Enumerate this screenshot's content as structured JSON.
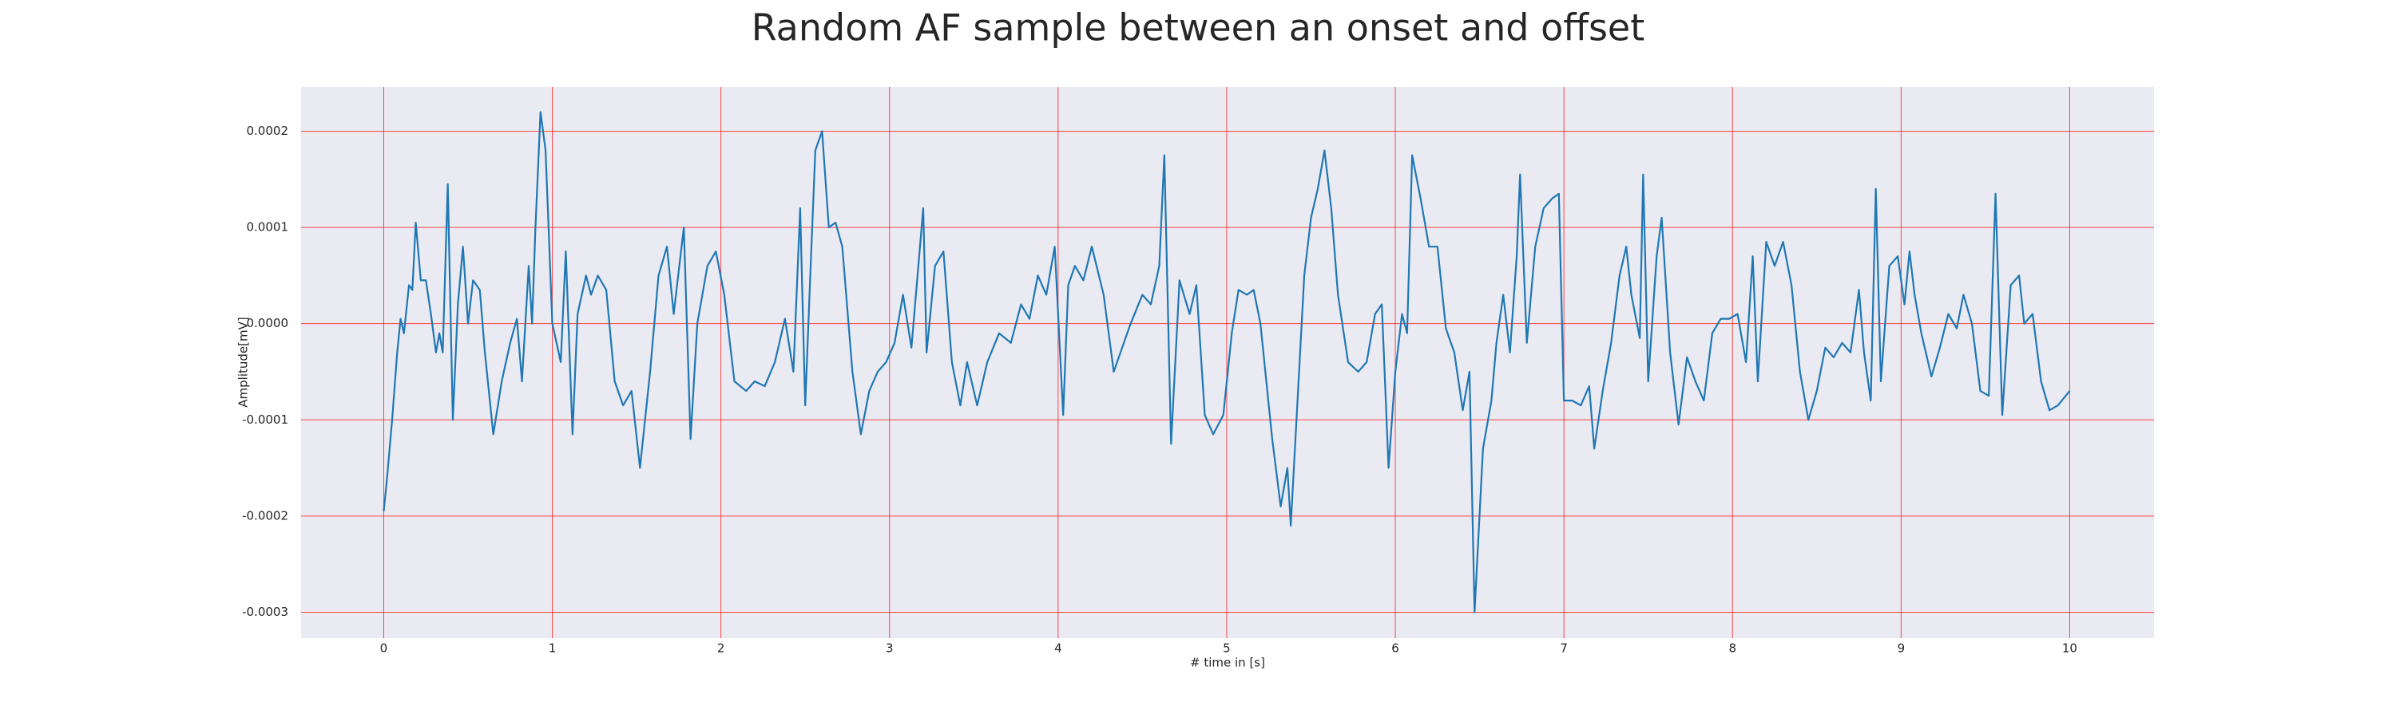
{
  "chart_data": {
    "type": "line",
    "title": "Random AF sample between an onset and offset",
    "x_label": "# time in [s]",
    "y_label": "Amplitude[mV]",
    "xlim": [
      -0.49,
      10.5
    ],
    "ylim": [
      -0.000327,
      0.000246
    ],
    "xticks": [
      0,
      1,
      2,
      3,
      4,
      5,
      6,
      7,
      8,
      9,
      10
    ],
    "yticks": [
      0.0002,
      0.0001,
      {
        "value": 0,
        "label": "0.0000"
      },
      -0.0001,
      -0.0002,
      -0.0003
    ],
    "grid": true,
    "grid_color": "#ff0000",
    "background": "#eaeaf2",
    "x": [
      0,
      0.02,
      0.05,
      0.08,
      0.1,
      0.12,
      0.15,
      0.17,
      0.19,
      0.22,
      0.25,
      0.28,
      0.31,
      0.33,
      0.35,
      0.38,
      0.41,
      0.44,
      0.47,
      0.5,
      0.53,
      0.57,
      0.6,
      0.65,
      0.7,
      0.75,
      0.79,
      0.82,
      0.86,
      0.88,
      0.9,
      0.93,
      0.96,
      1.0,
      1.05,
      1.08,
      1.12,
      1.15,
      1.2,
      1.23,
      1.27,
      1.32,
      1.37,
      1.42,
      1.47,
      1.52,
      1.58,
      1.63,
      1.68,
      1.72,
      1.78,
      1.82,
      1.86,
      1.92,
      1.97,
      2.02,
      2.08,
      2.15,
      2.2,
      2.26,
      2.32,
      2.38,
      2.43,
      2.47,
      2.5,
      2.53,
      2.56,
      2.6,
      2.64,
      2.68,
      2.72,
      2.78,
      2.83,
      2.88,
      2.93,
      2.98,
      3.03,
      3.08,
      3.13,
      3.2,
      3.22,
      3.27,
      3.32,
      3.37,
      3.42,
      3.46,
      3.52,
      3.58,
      3.65,
      3.72,
      3.78,
      3.83,
      3.88,
      3.93,
      3.98,
      4.03,
      4.06,
      4.1,
      4.15,
      4.2,
      4.27,
      4.33,
      4.38,
      4.43,
      4.5,
      4.55,
      4.6,
      4.63,
      4.67,
      4.72,
      4.78,
      4.82,
      4.87,
      4.92,
      4.98,
      5.03,
      5.07,
      5.12,
      5.16,
      5.2,
      5.27,
      5.32,
      5.36,
      5.38,
      5.42,
      5.46,
      5.5,
      5.54,
      5.58,
      5.62,
      5.66,
      5.72,
      5.78,
      5.83,
      5.88,
      5.92,
      5.96,
      6.0,
      6.04,
      6.07,
      6.1,
      6.15,
      6.2,
      6.25,
      6.3,
      6.35,
      6.4,
      6.44,
      6.47,
      6.52,
      6.57,
      6.6,
      6.64,
      6.68,
      6.72,
      6.74,
      6.78,
      6.83,
      6.88,
      6.93,
      6.97,
      7.0,
      7.05,
      7.1,
      7.15,
      7.18,
      7.23,
      7.28,
      7.33,
      7.37,
      7.4,
      7.45,
      7.47,
      7.5,
      7.55,
      7.58,
      7.63,
      7.68,
      7.73,
      7.78,
      7.83,
      7.88,
      7.93,
      7.98,
      8.03,
      8.08,
      8.12,
      8.15,
      8.2,
      8.25,
      8.3,
      8.35,
      8.4,
      8.45,
      8.5,
      8.55,
      8.6,
      8.65,
      8.7,
      8.75,
      8.78,
      8.82,
      8.85,
      8.88,
      8.93,
      8.98,
      9.02,
      9.05,
      9.08,
      9.12,
      9.18,
      9.23,
      9.28,
      9.33,
      9.37,
      9.42,
      9.47,
      9.52,
      9.56,
      9.6,
      9.65,
      9.7,
      9.73,
      9.78,
      9.83,
      9.88,
      9.93,
      10.0
    ],
    "series": [
      {
        "color": "#1f77b4",
        "values": [
          -0.000195,
          -0.00016,
          -0.0001,
          -3e-05,
          5e-06,
          -1e-05,
          4e-05,
          3.5e-05,
          0.000105,
          4.5e-05,
          4.5e-05,
          1e-05,
          -3e-05,
          -1e-05,
          -3e-05,
          0.000145,
          -0.0001,
          2e-05,
          8e-05,
          0.0,
          4.5e-05,
          3.5e-05,
          -3e-05,
          -0.000115,
          -6e-05,
          -2e-05,
          5e-06,
          -6e-05,
          6e-05,
          0.0,
          0.0001,
          0.00022,
          0.00018,
          0.0,
          -4e-05,
          7.5e-05,
          -0.000115,
          1e-05,
          5e-05,
          3e-05,
          5e-05,
          3.5e-05,
          -6e-05,
          -8.5e-05,
          -7e-05,
          -0.00015,
          -5e-05,
          5e-05,
          8e-05,
          1e-05,
          0.0001,
          -0.00012,
          0.0,
          6e-05,
          7.5e-05,
          3e-05,
          -6e-05,
          -7e-05,
          -6e-05,
          -6.5e-05,
          -4e-05,
          5e-06,
          -5e-05,
          0.00012,
          -8.5e-05,
          5e-05,
          0.00018,
          0.0002,
          0.0001,
          0.000105,
          8e-05,
          -5e-05,
          -0.000115,
          -7e-05,
          -5e-05,
          -4e-05,
          -2e-05,
          3e-05,
          -2.5e-05,
          0.00012,
          -3e-05,
          6e-05,
          7.5e-05,
          -4e-05,
          -8.5e-05,
          -4e-05,
          -8.5e-05,
          -4e-05,
          -1e-05,
          -2e-05,
          2e-05,
          5e-06,
          5e-05,
          3e-05,
          8e-05,
          -9.5e-05,
          4e-05,
          6e-05,
          4.5e-05,
          8e-05,
          3e-05,
          -5e-05,
          -2.5e-05,
          0.0,
          3e-05,
          2e-05,
          6e-05,
          0.000175,
          -0.000125,
          4.5e-05,
          1e-05,
          4e-05,
          -9.5e-05,
          -0.000115,
          -9.5e-05,
          -1e-05,
          3.5e-05,
          3e-05,
          3.5e-05,
          0.0,
          -0.00012,
          -0.00019,
          -0.00015,
          -0.00021,
          -8e-05,
          5e-05,
          0.00011,
          0.00014,
          0.00018,
          0.00012,
          3e-05,
          -4e-05,
          -5e-05,
          -4e-05,
          1e-05,
          2e-05,
          -0.00015,
          -5e-05,
          1e-05,
          -1e-05,
          0.000175,
          0.00013,
          8e-05,
          8e-05,
          -5e-06,
          -3e-05,
          -9e-05,
          -5e-05,
          -0.0003,
          -0.00013,
          -8e-05,
          -2e-05,
          3e-05,
          -3e-05,
          7e-05,
          0.000155,
          -2e-05,
          8e-05,
          0.00012,
          0.00013,
          0.000135,
          -8e-05,
          -8e-05,
          -8.5e-05,
          -6.5e-05,
          -0.00013,
          -7e-05,
          -2e-05,
          5e-05,
          8e-05,
          3e-05,
          -1.5e-05,
          0.000155,
          -6e-05,
          7e-05,
          0.00011,
          -3e-05,
          -0.000105,
          -3.5e-05,
          -6e-05,
          -8e-05,
          -1e-05,
          5e-06,
          5e-06,
          1e-05,
          -4e-05,
          7e-05,
          -6e-05,
          8.5e-05,
          6e-05,
          8.5e-05,
          4e-05,
          -5e-05,
          -0.0001,
          -7e-05,
          -2.5e-05,
          -3.5e-05,
          -2e-05,
          -3e-05,
          3.5e-05,
          -3e-05,
          -8e-05,
          0.00014,
          -6e-05,
          6e-05,
          7e-05,
          2e-05,
          7.5e-05,
          3e-05,
          -1e-05,
          -5.5e-05,
          -2.5e-05,
          1e-05,
          -5e-06,
          3e-05,
          0.0,
          -7e-05,
          -7.5e-05,
          0.000135,
          -9.5e-05,
          4e-05,
          5e-05,
          0.0,
          1e-05,
          -6e-05,
          -9e-05,
          -8.5e-05,
          -7e-05
        ]
      }
    ]
  }
}
